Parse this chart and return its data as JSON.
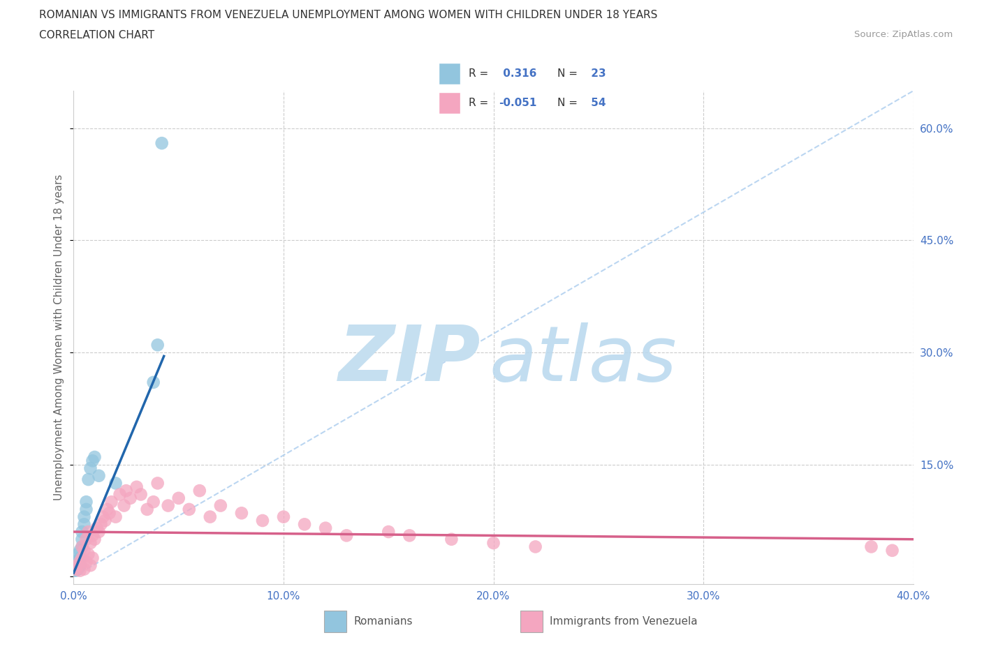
{
  "title_line1": "ROMANIAN VS IMMIGRANTS FROM VENEZUELA UNEMPLOYMENT AMONG WOMEN WITH CHILDREN UNDER 18 YEARS",
  "title_line2": "CORRELATION CHART",
  "source": "Source: ZipAtlas.com",
  "ylabel": "Unemployment Among Women with Children Under 18 years",
  "xlim": [
    0.0,
    0.4
  ],
  "ylim": [
    -0.01,
    0.65
  ],
  "ytick_vals": [
    0.0,
    0.15,
    0.3,
    0.45,
    0.6
  ],
  "xtick_vals": [
    0.0,
    0.1,
    0.2,
    0.3,
    0.4
  ],
  "blue_R": 0.316,
  "blue_N": 23,
  "pink_R": -0.051,
  "pink_N": 54,
  "blue_scatter_color": "#92c5de",
  "blue_line_color": "#2166ac",
  "pink_scatter_color": "#f4a6c0",
  "pink_line_color": "#d6608a",
  "ref_line_color": "#aaccee",
  "grid_color": "#cccccc",
  "tick_label_color": "#4472c4",
  "ylabel_color": "#666666",
  "title_color": "#333333",
  "source_color": "#999999",
  "watermark_ZIP_color": "#c5dff0",
  "watermark_atlas_color": "#b8d8ee",
  "blue_dots_x": [
    0.001,
    0.001,
    0.002,
    0.002,
    0.003,
    0.003,
    0.003,
    0.004,
    0.004,
    0.004,
    0.005,
    0.005,
    0.006,
    0.006,
    0.007,
    0.008,
    0.009,
    0.01,
    0.012,
    0.02,
    0.038,
    0.04,
    0.042
  ],
  "blue_dots_y": [
    0.008,
    0.02,
    0.01,
    0.03,
    0.015,
    0.025,
    0.035,
    0.04,
    0.05,
    0.06,
    0.07,
    0.08,
    0.09,
    0.1,
    0.13,
    0.145,
    0.155,
    0.16,
    0.135,
    0.125,
    0.26,
    0.31,
    0.58
  ],
  "pink_dots_x": [
    0.001,
    0.002,
    0.003,
    0.003,
    0.004,
    0.004,
    0.005,
    0.005,
    0.006,
    0.006,
    0.007,
    0.007,
    0.008,
    0.008,
    0.009,
    0.009,
    0.01,
    0.011,
    0.012,
    0.013,
    0.014,
    0.015,
    0.016,
    0.017,
    0.018,
    0.02,
    0.022,
    0.024,
    0.025,
    0.027,
    0.03,
    0.032,
    0.035,
    0.038,
    0.04,
    0.045,
    0.05,
    0.055,
    0.06,
    0.065,
    0.07,
    0.08,
    0.09,
    0.1,
    0.11,
    0.12,
    0.13,
    0.15,
    0.16,
    0.18,
    0.2,
    0.22,
    0.38,
    0.39
  ],
  "pink_dots_y": [
    0.01,
    0.015,
    0.008,
    0.02,
    0.025,
    0.04,
    0.01,
    0.035,
    0.02,
    0.05,
    0.03,
    0.06,
    0.015,
    0.045,
    0.025,
    0.055,
    0.05,
    0.065,
    0.06,
    0.07,
    0.08,
    0.075,
    0.09,
    0.085,
    0.1,
    0.08,
    0.11,
    0.095,
    0.115,
    0.105,
    0.12,
    0.11,
    0.09,
    0.1,
    0.125,
    0.095,
    0.105,
    0.09,
    0.115,
    0.08,
    0.095,
    0.085,
    0.075,
    0.08,
    0.07,
    0.065,
    0.055,
    0.06,
    0.055,
    0.05,
    0.045,
    0.04,
    0.04,
    0.035
  ],
  "blue_line_x0": 0.0,
  "blue_line_x1": 0.043,
  "blue_line_y0": 0.005,
  "blue_line_y1": 0.295,
  "pink_line_x0": 0.0,
  "pink_line_x1": 0.4,
  "pink_line_y0": 0.06,
  "pink_line_y1": 0.05,
  "ref_line_x0": 0.0,
  "ref_line_x1": 0.4,
  "ref_line_y0": 0.0,
  "ref_line_y1": 0.65
}
